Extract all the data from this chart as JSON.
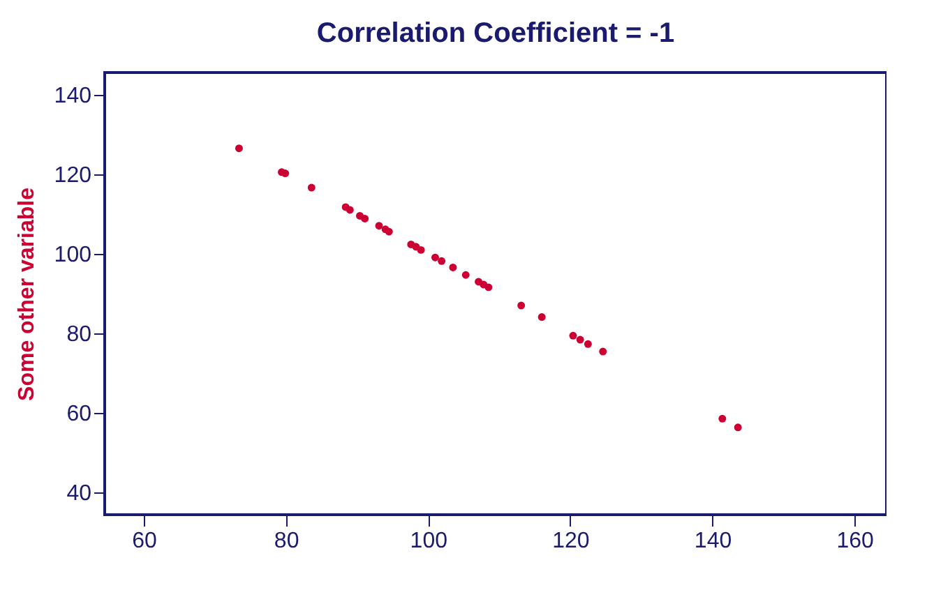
{
  "chart_data": {
    "type": "scatter",
    "title": "Correlation Coefficient = -1",
    "ylabel": "Some other variable",
    "x": [
      73.4,
      79.4,
      79.9,
      83.6,
      88.4,
      89.0,
      90.4,
      91.1,
      93.1,
      94.0,
      94.5,
      97.6,
      98.3,
      99.0,
      101.0,
      101.9,
      103.5,
      105.3,
      107.1,
      107.8,
      108.5,
      113.1,
      116.0,
      120.4,
      121.4,
      122.5,
      124.6,
      141.4,
      143.6
    ],
    "series": [
      {
        "color": "#cc0033",
        "values": [
          126.6,
          120.6,
          120.3,
          116.7,
          111.8,
          111.1,
          109.6,
          108.9,
          107.1,
          106.2,
          105.6,
          102.4,
          101.8,
          101.0,
          99.1,
          98.2,
          96.6,
          94.7,
          93.0,
          92.3,
          91.6,
          87.0,
          84.1,
          79.4,
          78.4,
          77.3,
          75.4,
          58.5,
          56.3
        ]
      }
    ],
    "xlim": [
      54.5,
      164.5
    ],
    "xticks": [
      60,
      80,
      100,
      120,
      140,
      160
    ],
    "ylim": [
      34.3,
      145.7
    ],
    "yticks": [
      40,
      60,
      80,
      100,
      120,
      140
    ],
    "grid": false,
    "legend": false,
    "marker": "circle"
  }
}
